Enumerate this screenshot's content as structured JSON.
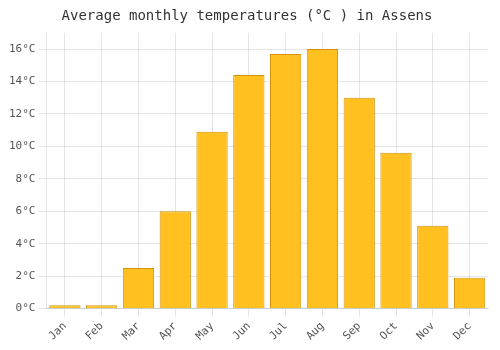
{
  "chart_data": {
    "type": "bar",
    "title": "Average monthly temperatures (°C ) in Assens",
    "categories": [
      "Jan",
      "Feb",
      "Mar",
      "Apr",
      "May",
      "Jun",
      "Jul",
      "Aug",
      "Sep",
      "Oct",
      "Nov",
      "Dec"
    ],
    "values": [
      0.2,
      0.2,
      2.5,
      6.0,
      10.9,
      14.4,
      15.7,
      16.0,
      13.0,
      9.6,
      5.1,
      1.9
    ],
    "color": "#FFC020",
    "ylim": [
      0,
      17
    ],
    "yticks": [
      {
        "value": 0,
        "label": "0°C"
      },
      {
        "value": 2,
        "label": "2°C"
      },
      {
        "value": 4,
        "label": "4°C"
      },
      {
        "value": 6,
        "label": "6°C"
      },
      {
        "value": 8,
        "label": "8°C"
      },
      {
        "value": 10,
        "label": "10°C"
      },
      {
        "value": 12,
        "label": "12°C"
      },
      {
        "value": 14,
        "label": "14°C"
      },
      {
        "value": 16,
        "label": "16°C"
      }
    ],
    "grid": true
  }
}
